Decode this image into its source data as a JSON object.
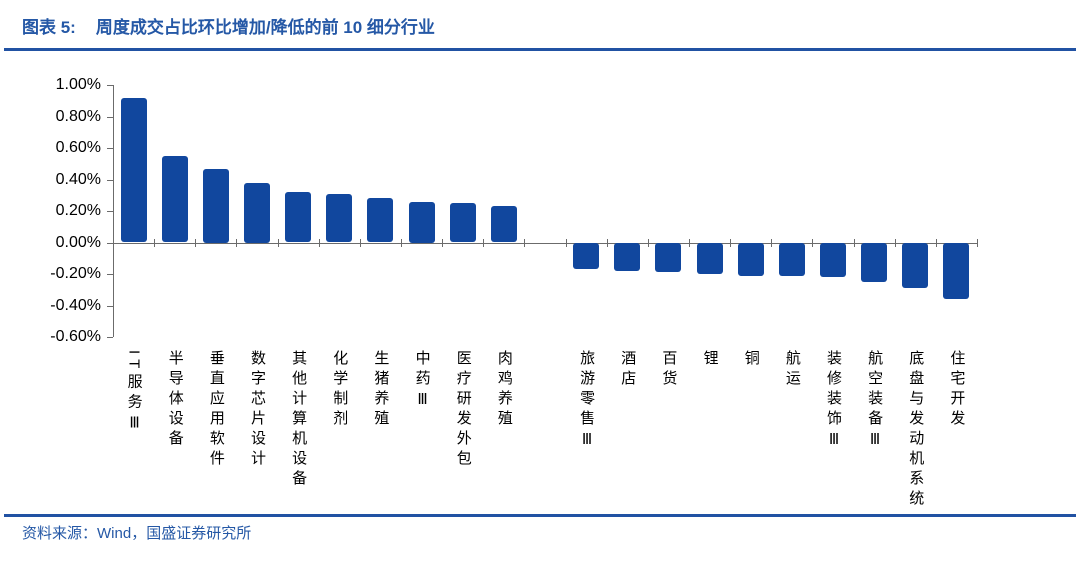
{
  "header": {
    "tag": "图表 5:",
    "title": "周度成交占比环比增加/降低的前 10 细分行业"
  },
  "footer": {
    "source_label": "资料来源：",
    "source_text": "Wind，国盛证券研究所"
  },
  "colors": {
    "title_blue": "#2558A6",
    "rule_blue": "#2152A3",
    "bar_blue": "#11479E",
    "axis_gray": "#6B6B6B"
  },
  "chart_data": {
    "type": "bar",
    "title": "周度成交占比环比增加/降低的前 10 细分行业",
    "unit": "%",
    "ylim": [
      -0.6,
      1.0
    ],
    "grid": false,
    "legend": false,
    "bar_color": "#11479E",
    "yticks": [
      {
        "value": 1.0,
        "label": "1.00%"
      },
      {
        "value": 0.8,
        "label": "0.80%"
      },
      {
        "value": 0.6,
        "label": "0.60%"
      },
      {
        "value": 0.4,
        "label": "0.40%"
      },
      {
        "value": 0.2,
        "label": "0.20%"
      },
      {
        "value": 0.0,
        "label": "0.00%"
      },
      {
        "value": -0.2,
        "label": "-0.20%"
      },
      {
        "value": -0.4,
        "label": "-0.40%"
      },
      {
        "value": -0.6,
        "label": "-0.60%"
      }
    ],
    "groups": [
      {
        "name": "increase_top10",
        "categories": [
          "IT服务Ⅲ",
          "半导体设备",
          "垂直应用软件",
          "数字芯片设计",
          "其他计算机设备",
          "化学制剂",
          "生猪养殖",
          "中药Ⅲ",
          "医疗研发外包",
          "肉鸡养殖"
        ],
        "values": [
          0.92,
          0.55,
          0.47,
          0.38,
          0.32,
          0.31,
          0.28,
          0.26,
          0.25,
          0.23
        ]
      },
      {
        "name": "decrease_top10",
        "categories": [
          "旅游零售Ⅲ",
          "酒店",
          "百货",
          "锂",
          "铜",
          "航运",
          "装修装饰Ⅲ",
          "航空装备Ⅲ",
          "底盘与发动机系统",
          "住宅开发"
        ],
        "values": [
          -0.17,
          -0.18,
          -0.19,
          -0.2,
          -0.21,
          -0.21,
          -0.22,
          -0.25,
          -0.29,
          -0.36
        ]
      }
    ]
  }
}
